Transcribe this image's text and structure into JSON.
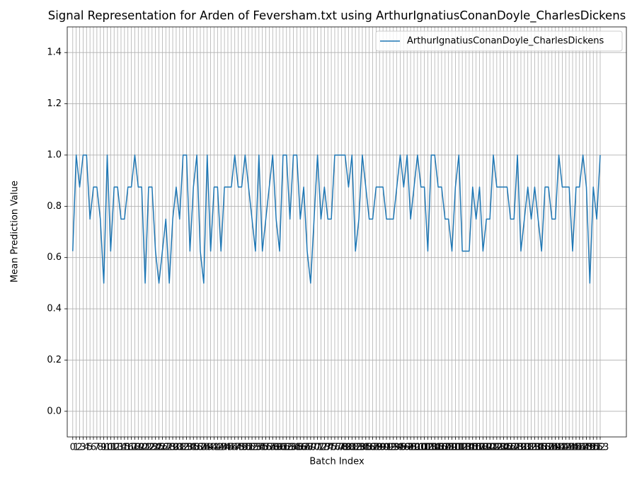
{
  "chart_data": {
    "type": "line",
    "title": "Signal Representation for Arden of Feversham.txt using ArthurIgnatiusConanDoyle_CharlesDickens",
    "xlabel": "Batch Index",
    "ylabel": "Mean Prediction Value",
    "x": [
      0,
      1,
      2,
      3,
      4,
      5,
      6,
      7,
      8,
      9,
      10,
      11,
      12,
      13,
      14,
      15,
      16,
      17,
      18,
      19,
      20,
      21,
      22,
      23,
      24,
      25,
      26,
      27,
      28,
      29,
      30,
      31,
      32,
      33,
      34,
      35,
      36,
      37,
      38,
      39,
      40,
      41,
      42,
      43,
      44,
      45,
      46,
      47,
      48,
      49,
      50,
      51,
      52,
      53,
      54,
      55,
      56,
      57,
      58,
      59,
      60,
      61,
      62,
      63,
      64,
      65,
      66,
      67,
      68,
      69,
      70,
      71,
      72,
      73,
      74,
      75,
      76,
      77,
      78,
      79,
      80,
      81,
      82,
      83,
      84,
      85,
      86,
      87,
      88,
      89,
      90,
      91,
      92,
      93,
      94,
      95,
      96,
      97,
      98,
      99,
      100,
      101,
      102,
      103,
      104,
      105,
      106,
      107,
      108,
      109,
      110,
      111,
      112,
      113,
      114,
      115,
      116,
      117,
      118,
      119,
      120,
      121,
      122,
      123,
      124,
      125,
      126,
      127,
      128,
      129,
      130,
      131,
      132,
      133,
      134,
      135,
      136,
      137,
      138,
      139,
      140,
      141,
      142,
      143,
      144,
      145,
      146,
      147,
      148,
      149,
      150,
      151,
      152,
      153
    ],
    "series": [
      {
        "name": "ArthurIgnatiusConanDoyle_CharlesDickens",
        "color": "#1f77b4",
        "values": [
          0.625,
          1.0,
          0.875,
          1.0,
          1.0,
          0.75,
          0.875,
          0.875,
          0.75,
          0.5,
          1.0,
          0.625,
          0.875,
          0.875,
          0.75,
          0.75,
          0.875,
          0.875,
          1.0,
          0.875,
          0.875,
          0.5,
          0.875,
          0.875,
          0.625,
          0.5,
          0.625,
          0.75,
          0.5,
          0.75,
          0.875,
          0.75,
          1.0,
          1.0,
          0.625,
          0.875,
          1.0,
          0.625,
          0.5,
          1.0,
          0.625,
          0.875,
          0.875,
          0.625,
          0.875,
          0.875,
          0.875,
          1.0,
          0.875,
          0.875,
          1.0,
          0.875,
          0.75,
          0.625,
          1.0,
          0.625,
          0.75,
          0.875,
          1.0,
          0.75,
          0.625,
          1.0,
          1.0,
          0.75,
          1.0,
          1.0,
          0.75,
          0.875,
          0.625,
          0.5,
          0.75,
          1.0,
          0.75,
          0.875,
          0.75,
          0.75,
          1.0,
          1.0,
          1.0,
          1.0,
          0.875,
          1.0,
          0.625,
          0.75,
          1.0,
          0.875,
          0.75,
          0.75,
          0.875,
          0.875,
          0.875,
          0.75,
          0.75,
          0.75,
          0.875,
          1.0,
          0.875,
          1.0,
          0.75,
          0.875,
          1.0,
          0.875,
          0.875,
          0.625,
          1.0,
          1.0,
          0.875,
          0.875,
          0.75,
          0.75,
          0.625,
          0.875,
          1.0,
          0.625,
          0.625,
          0.625,
          0.875,
          0.75,
          0.875,
          0.625,
          0.75,
          0.75,
          1.0,
          0.875,
          0.875,
          0.875,
          0.875,
          0.75,
          0.75,
          1.0,
          0.625,
          0.75,
          0.875,
          0.75,
          0.875,
          0.75,
          0.625,
          0.875,
          0.875,
          0.75,
          0.75,
          1.0,
          0.875,
          0.875,
          0.875,
          0.625,
          0.875,
          0.875,
          1.0,
          0.875,
          0.5,
          0.875,
          0.75,
          1.0
        ]
      }
    ],
    "xlim": [
      -1.6,
      160.6
    ],
    "xticks": [
      0,
      1,
      2,
      3,
      4,
      5,
      6,
      7,
      8,
      9,
      10,
      11,
      12,
      13,
      14,
      15,
      16,
      17,
      18,
      19,
      20,
      21,
      22,
      23,
      24,
      25,
      26,
      27,
      28,
      29,
      30,
      31,
      32,
      33,
      34,
      35,
      36,
      37,
      38,
      39,
      40,
      41,
      42,
      43,
      44,
      45,
      46,
      47,
      48,
      49,
      50,
      51,
      52,
      53,
      54,
      55,
      56,
      57,
      58,
      59,
      60,
      61,
      62,
      63,
      64,
      65,
      66,
      67,
      68,
      69,
      70,
      71,
      72,
      73,
      74,
      75,
      76,
      77,
      78,
      79,
      80,
      81,
      82,
      83,
      84,
      85,
      86,
      87,
      88,
      89,
      90,
      91,
      92,
      93,
      94,
      95,
      96,
      97,
      98,
      99,
      100,
      101,
      102,
      103,
      104,
      105,
      106,
      107,
      108,
      109,
      110,
      111,
      112,
      113,
      114,
      115,
      116,
      117,
      118,
      119,
      120,
      121,
      122,
      123,
      124,
      125,
      126,
      127,
      128,
      129,
      130,
      131,
      132,
      133,
      134,
      135,
      136,
      137,
      138,
      139,
      140,
      141,
      142,
      143,
      144,
      145,
      146,
      147,
      148,
      149,
      150,
      151,
      152,
      153
    ],
    "ylim": [
      -0.1,
      1.5
    ],
    "yticks": [
      {
        "value": 0,
        "label": "0.0"
      },
      0.2,
      0.4,
      0.6,
      0.8,
      {
        "value": 1,
        "label": "1.0"
      },
      1.2,
      1.4
    ],
    "grid": true,
    "legend": "upper right"
  }
}
